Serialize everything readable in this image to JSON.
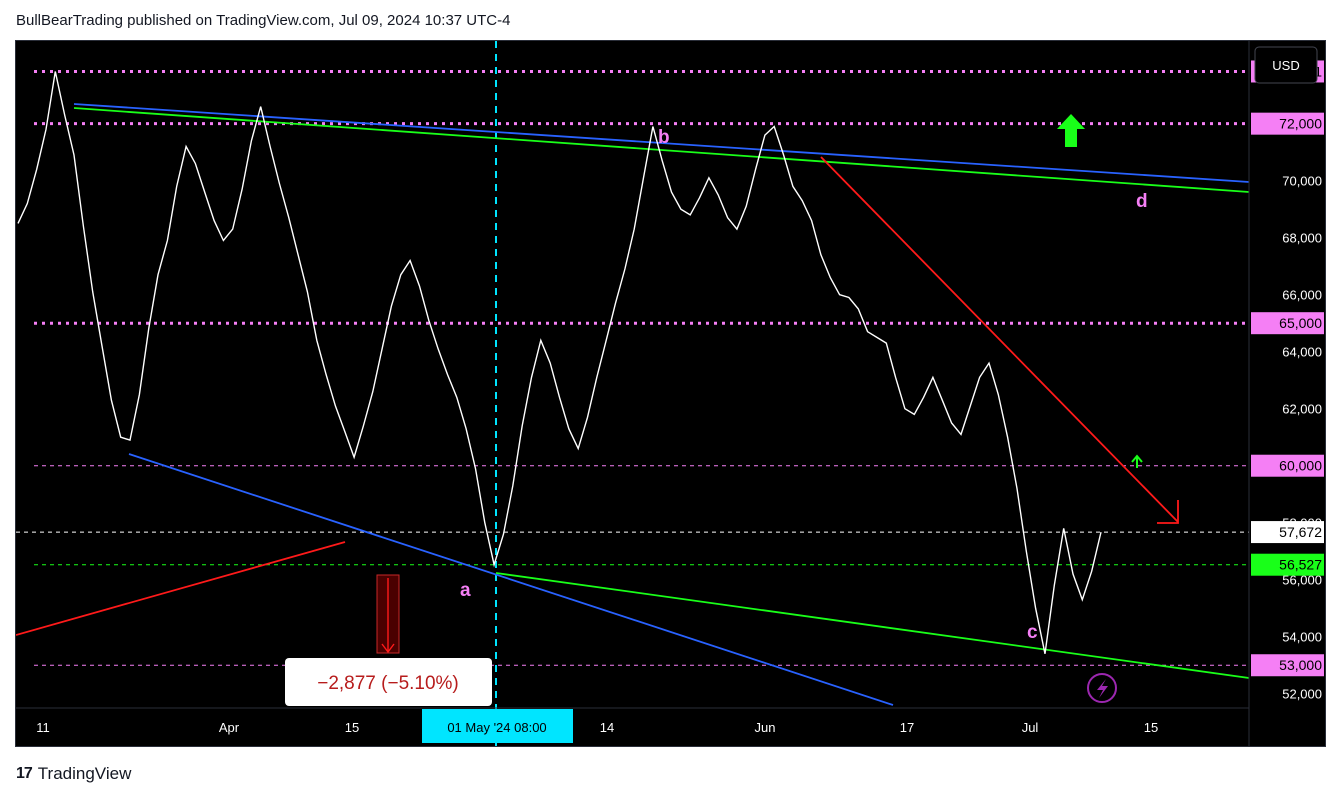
{
  "header": {
    "publisher_line": "BullBearTrading published on TradingView.com, Jul 09, 2024 10:37 UTC-4"
  },
  "footer": {
    "brand": "TradingView",
    "logo_glyph": "17"
  },
  "chart_data": {
    "type": "line",
    "series": [
      {
        "values": [
          68500,
          69200,
          70400,
          71800,
          73831,
          72300,
          70900,
          68400,
          66100,
          64200,
          62300,
          61000,
          60900,
          62500,
          64800,
          66700,
          67900,
          69800,
          71200,
          70600,
          69600,
          68600,
          67900,
          68300,
          69700,
          71400,
          72600,
          71200,
          69900,
          68700,
          67400,
          66100,
          64400,
          63200,
          62100,
          61200,
          60300,
          61400,
          62600,
          64100,
          65600,
          66700,
          67200,
          66300,
          65100,
          64100,
          63200,
          62400,
          61300,
          59900,
          58000,
          56527,
          57600,
          59300,
          61400,
          63100,
          64400,
          63600,
          62400,
          61300,
          60600,
          61700,
          63100,
          64400,
          65700,
          66900,
          68300,
          70100,
          71900,
          70700,
          69600,
          69000,
          68800,
          69400,
          70100,
          69500,
          68700,
          68300,
          69100,
          70400,
          71600,
          71900,
          70900,
          69800,
          69300,
          68600,
          67400,
          66600,
          66000,
          65900,
          65500,
          64700,
          64500,
          64300,
          63100,
          62000,
          61800,
          62400,
          63100,
          62300,
          61500,
          61100,
          62100,
          63100,
          63600,
          62500,
          61000,
          59200,
          57000,
          55000,
          53400,
          55800,
          57800,
          56200,
          55300,
          56300,
          57672
        ]
      }
    ],
    "x_tick_labels": [
      "11",
      "Apr",
      "15",
      "14",
      "Jun",
      "17",
      "Jul",
      "15"
    ],
    "x_highlight_label": "01 May '24   08:00",
    "y_tick_labels": [
      "52,000",
      "54,000",
      "56,000",
      "58,000",
      "62,000",
      "64,000",
      "66,000",
      "68,000",
      "70,000"
    ],
    "ylim": [
      51500,
      74900
    ],
    "price_tags": [
      {
        "value": 73831,
        "label": "73,831",
        "color": "#f57ff5"
      },
      {
        "value": 72000,
        "label": "72,000",
        "color": "#f57ff5"
      },
      {
        "value": 65000,
        "label": "65,000",
        "color": "#f57ff5"
      },
      {
        "value": 60000,
        "label": "60,000",
        "color": "#f57ff5"
      },
      {
        "value": 57672,
        "label": "57,672",
        "color": "#ffffff"
      },
      {
        "value": 56527,
        "label": "56,527",
        "color": "#19ff19"
      },
      {
        "value": 53000,
        "label": "53,000",
        "color": "#f57ff5"
      }
    ],
    "currency_button": "USD",
    "wave_labels": [
      "a",
      "b",
      "c",
      "d"
    ],
    "measure_label": "−2,877 (−5.10%)",
    "colors": {
      "price": "#ffffff",
      "pink": "#f57ff5",
      "blue": "#2962ff",
      "green": "#19ff19",
      "red": "#ff1a1a",
      "cyan": "#00e5ff",
      "purple": "#9c27b0"
    },
    "grid": false
  }
}
